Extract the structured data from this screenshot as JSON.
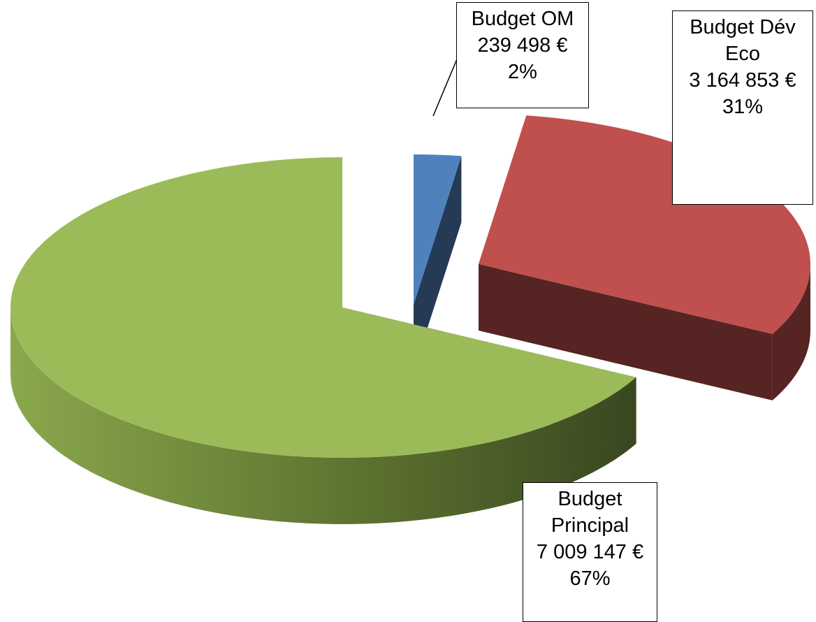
{
  "chart_data": {
    "type": "pie",
    "categories": [
      "Budget OM",
      "Budget Dév Eco",
      "Budget Principal"
    ],
    "values": [
      239498,
      3164853,
      7009147
    ],
    "value_labels": [
      "239 498 €",
      "3 164 853 €",
      "7 009 147 €"
    ],
    "percent_labels": [
      "2%",
      "31%",
      "67%"
    ],
    "colors": [
      "#4f81bd",
      "#c0504d",
      "#9bbb59"
    ],
    "three_d": true,
    "exploded": [
      true,
      true,
      false
    ]
  }
}
